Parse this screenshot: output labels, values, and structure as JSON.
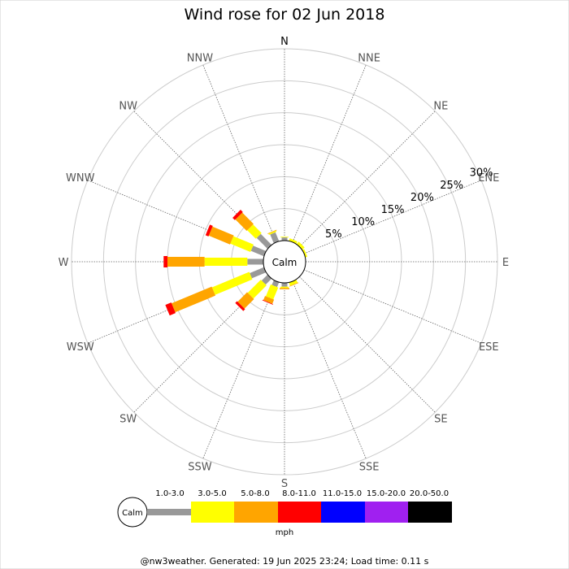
{
  "chart_data": {
    "type": "wind-rose",
    "title": "Wind rose for 02 Jun 2018",
    "directions": [
      "N",
      "NNE",
      "NE",
      "ENE",
      "E",
      "ESE",
      "SE",
      "SSE",
      "S",
      "SSW",
      "SW",
      "WSW",
      "W",
      "WNW",
      "NW",
      "NNW"
    ],
    "direction_angles_deg": [
      0,
      22.5,
      45,
      67.5,
      90,
      112.5,
      135,
      157.5,
      180,
      202.5,
      225,
      247.5,
      270,
      292.5,
      315,
      337.5
    ],
    "radial_ticks": [
      "5%",
      "10%",
      "15%",
      "20%",
      "25%",
      "30%"
    ],
    "radial_tick_values": [
      5,
      10,
      15,
      20,
      25,
      30
    ],
    "rmax_percent": 30,
    "calm_label": "Calm",
    "speed_bins": [
      "1.0-3.0",
      "3.0-5.0",
      "5.0-8.0",
      "8.0-11.0",
      "11.0-15.0",
      "15.0-20.0",
      "20.0-50.0"
    ],
    "bin_colors": [
      "#999999",
      "#ffff00",
      "#ffa500",
      "#ff0000",
      "#0000ff",
      "#a020f0",
      "#000000"
    ],
    "unit": "mph",
    "series": [
      {
        "direction": "N",
        "angle": 0,
        "cumulative": [
          0.5,
          0.6,
          0.6,
          0.6
        ]
      },
      {
        "direction": "NNE",
        "angle": 22.5,
        "cumulative": [
          0.0,
          0.4,
          0.4,
          0.4
        ]
      },
      {
        "direction": "NE",
        "angle": 45,
        "cumulative": [
          0.0,
          0.5,
          0.5,
          0.5
        ]
      },
      {
        "direction": "ENE",
        "angle": 67.5,
        "cumulative": [
          0.0,
          0.3,
          0.3,
          0.3
        ]
      },
      {
        "direction": "E",
        "angle": 90,
        "cumulative": [
          0.0,
          0.0,
          0.0,
          0.0
        ]
      },
      {
        "direction": "ESE",
        "angle": 112.5,
        "cumulative": [
          0.0,
          0.0,
          0.0,
          0.0
        ]
      },
      {
        "direction": "SE",
        "angle": 135,
        "cumulative": [
          0.0,
          0.0,
          0.0,
          0.0
        ]
      },
      {
        "direction": "SSE",
        "angle": 157.5,
        "cumulative": [
          0.0,
          0.5,
          0.6,
          0.6
        ]
      },
      {
        "direction": "S",
        "angle": 180,
        "cumulative": [
          0.6,
          0.8,
          1.0,
          1.0
        ]
      },
      {
        "direction": "SSW",
        "angle": 202.5,
        "cumulative": [
          0.8,
          2.8,
          3.5,
          3.6
        ]
      },
      {
        "direction": "SW",
        "angle": 225,
        "cumulative": [
          1.3,
          4.2,
          6.3,
          6.7
        ]
      },
      {
        "direction": "WSW",
        "angle": 247.5,
        "cumulative": [
          2.4,
          8.7,
          15.5,
          16.5
        ]
      },
      {
        "direction": "W",
        "angle": 270,
        "cumulative": [
          2.5,
          9.2,
          15.0,
          15.6
        ]
      },
      {
        "direction": "WNW",
        "angle": 292.5,
        "cumulative": [
          2.2,
          5.6,
          9.2,
          9.7
        ]
      },
      {
        "direction": "NW",
        "angle": 315,
        "cumulative": [
          2.4,
          4.3,
          6.8,
          7.3
        ]
      },
      {
        "direction": "NNW",
        "angle": 337.5,
        "cumulative": [
          1.5,
          1.7,
          1.8,
          1.8
        ]
      }
    ]
  },
  "footer": "@nw3weather. Generated: 19 Jun 2025 23:24; Load time: 0.11 s"
}
